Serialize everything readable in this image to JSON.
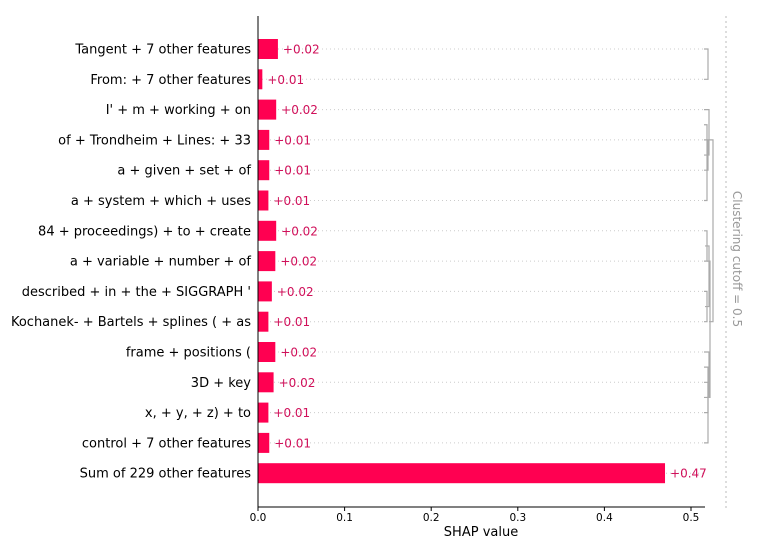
{
  "chart_data": {
    "type": "bar",
    "orientation": "horizontal",
    "xlabel": "SHAP value",
    "xlim": [
      0,
      0.52
    ],
    "xticks": [
      0.0,
      0.1,
      0.2,
      0.3,
      0.4,
      0.5
    ],
    "xtick_labels": [
      "0.0",
      "0.1",
      "0.2",
      "0.3",
      "0.4",
      "0.5"
    ],
    "bar_color": "#ff0051",
    "value_label_color": "#d0105a",
    "cutoff_line_color": "#bbbbbb",
    "dendrogram_color": "#aaaaaa",
    "cutoff_label": "Clustering cutoff = 0.5",
    "features": [
      {
        "label": "Tangent + 7 other features",
        "value": 0.023,
        "text": "+0.02"
      },
      {
        "label": "From: + 7 other features",
        "value": 0.005,
        "text": "+0.01"
      },
      {
        "label": "I' + m + working + on",
        "value": 0.021,
        "text": "+0.02"
      },
      {
        "label": "of + Trondheim + Lines: + 33",
        "value": 0.013,
        "text": "+0.01"
      },
      {
        "label": "a + given + set + of",
        "value": 0.013,
        "text": "+0.01"
      },
      {
        "label": "a + system + which + uses",
        "value": 0.012,
        "text": "+0.01"
      },
      {
        "label": "84 + proceedings) + to + create",
        "value": 0.021,
        "text": "+0.02"
      },
      {
        "label": "a + variable + number + of",
        "value": 0.02,
        "text": "+0.02"
      },
      {
        "label": "described + in + the + SIGGRAPH '",
        "value": 0.016,
        "text": "+0.02"
      },
      {
        "label": "Kochanek- + Bartels + splines ( + as",
        "value": 0.012,
        "text": "+0.01"
      },
      {
        "label": "frame + positions (",
        "value": 0.02,
        "text": "+0.02"
      },
      {
        "label": "3D + key",
        "value": 0.018,
        "text": "+0.02"
      },
      {
        "label": "x, + y, + z) + to",
        "value": 0.012,
        "text": "+0.01"
      },
      {
        "label": "control + 7 other features",
        "value": 0.013,
        "text": "+0.01"
      },
      {
        "label": "Sum of 229 other features",
        "value": 0.47,
        "text": "+0.47"
      }
    ]
  }
}
